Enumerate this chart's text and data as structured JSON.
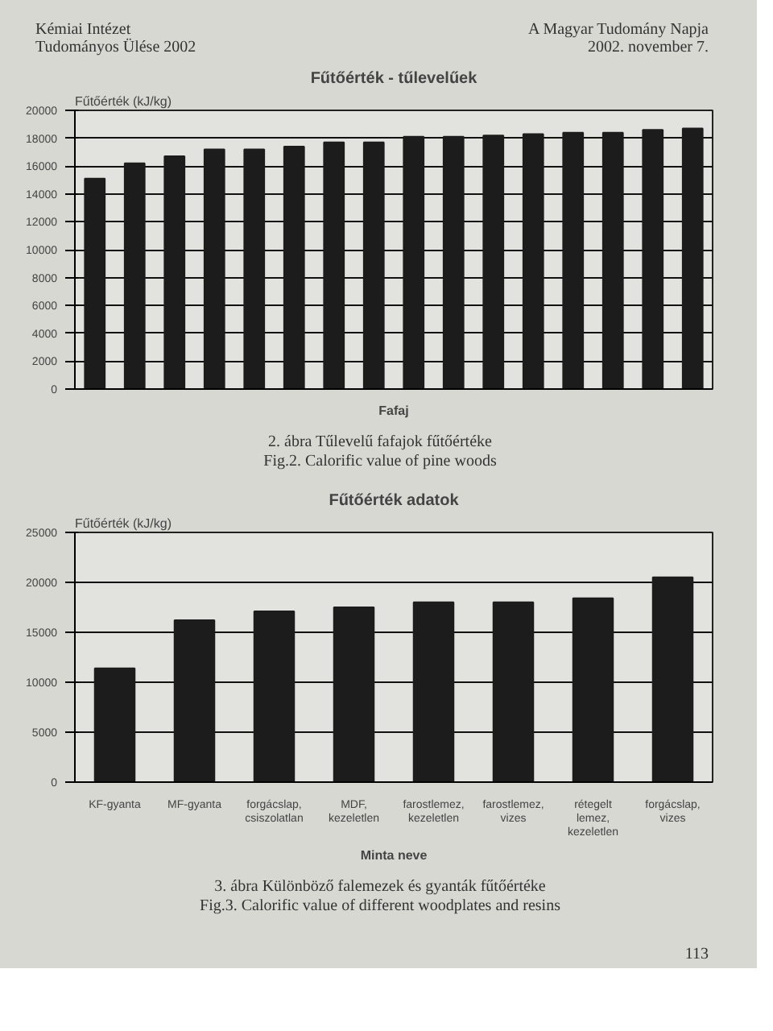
{
  "chart_data": [
    {
      "type": "other",
      "annotations": [
        "Kémiai Intézet Tudományos Ülése 2002",
        "A Magyar Tudomány Napja 2002. november 7."
      ]
    },
    {
      "type": "bar",
      "title": "Fűtőérték - tűlevelűek",
      "ylabel": "Fűtőérték (kJ/kg)",
      "xlabel": "Fafaj",
      "categories": [
        null,
        null,
        null,
        null,
        null,
        null,
        null,
        null,
        null,
        null,
        null,
        null,
        null,
        null,
        null,
        null
      ],
      "values": [
        15100,
        16200,
        16700,
        17200,
        17200,
        17400,
        17700,
        17700,
        18100,
        18100,
        18200,
        18300,
        18400,
        18400,
        18600,
        18700
      ],
      "color": "#1c1c1c",
      "ylim": [
        0,
        20000
      ],
      "yticks": [
        0,
        2000,
        4000,
        6000,
        8000,
        10000,
        12000,
        14000,
        16000,
        18000,
        20000
      ],
      "grid": "y",
      "annotations": [
        "2. ábra Tűlevelű fafajok fűtőértéke",
        "Fig.2. Calorific value of pine woods"
      ]
    },
    {
      "type": "bar",
      "title": "Fűtőérték adatok",
      "ylabel": "Fűtőérték (kJ/kg)",
      "xlabel": "Minta neve",
      "categories": [
        "KF-gyanta",
        "MF-gyanta",
        "forgácslap, csiszolatlan",
        "MDF, kezeletlen",
        "farostlemez, kezeletlen",
        "farostlemez, vizes",
        "rétegelt lemez, kezeletlen",
        "forgácslap, vizes"
      ],
      "values": [
        11400,
        16200,
        17100,
        17500,
        18000,
        18000,
        18400,
        20500
      ],
      "color": "#1c1c1c",
      "ylim": [
        0,
        25000
      ],
      "yticks": [
        0,
        5000,
        10000,
        15000,
        20000,
        25000
      ],
      "grid": "y",
      "annotations": [
        "3. ábra Különböző falemezek és gyanták fűtőértéke",
        "Fig.3. Calorific value of different woodplates and resins"
      ]
    },
    {
      "type": "other",
      "annotations": [
        "113"
      ]
    }
  ]
}
